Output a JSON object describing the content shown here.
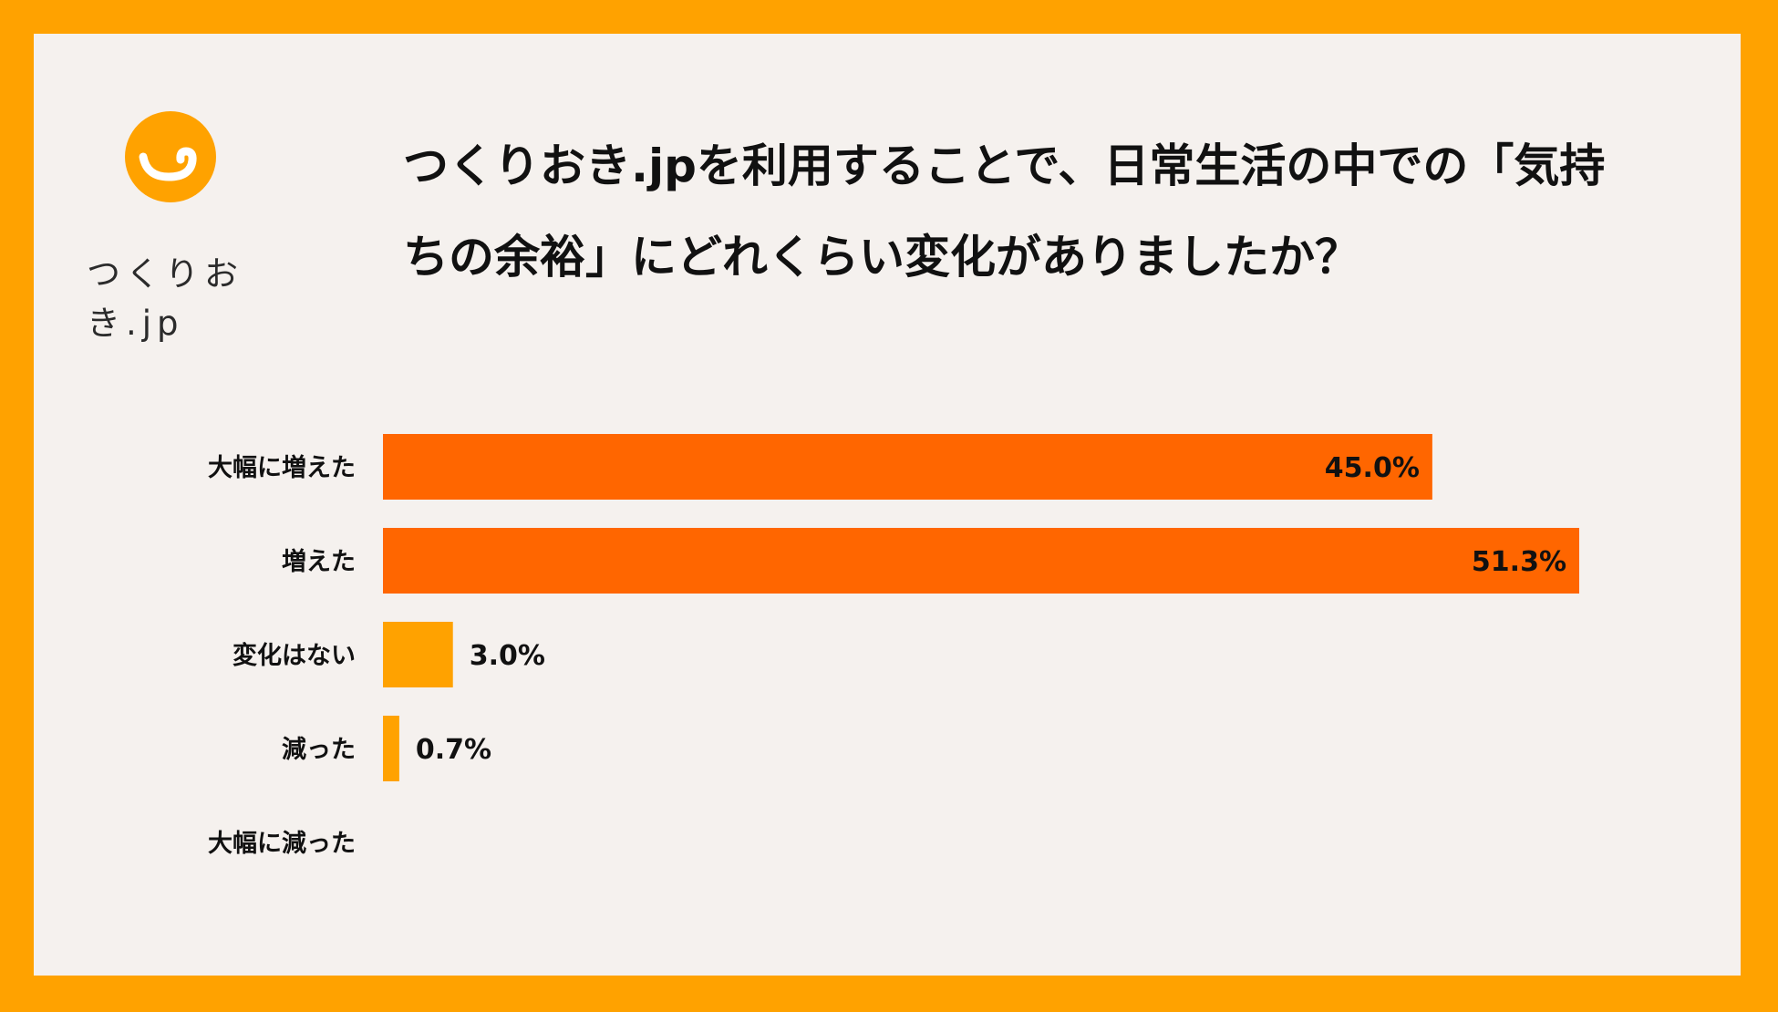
{
  "logo": {
    "text": "つくりおき.jp",
    "color": "#FFA200"
  },
  "title": {
    "line1": "つくりおき.jpを利用することで、日常生活の中での「気持",
    "line2": "ちの余裕」にどれくらい変化がありましたか？"
  },
  "colors": {
    "border": "#FFA200",
    "background": "#F5F1EE",
    "highlight": "#FF6600",
    "normal": "#FFA200"
  },
  "chart_data": {
    "type": "bar",
    "orientation": "horizontal",
    "categories": [
      "大幅に増えた",
      "増えた",
      "変化はない",
      "減った",
      "大幅に減った"
    ],
    "values": [
      45.0,
      51.3,
      3.0,
      0.7,
      0
    ],
    "value_labels": [
      "45.0%",
      "51.3%",
      "3.0%",
      "0.7%",
      ""
    ],
    "highlight": [
      true,
      true,
      false,
      false,
      false
    ],
    "xlim": [
      0,
      55
    ],
    "grid": false
  }
}
